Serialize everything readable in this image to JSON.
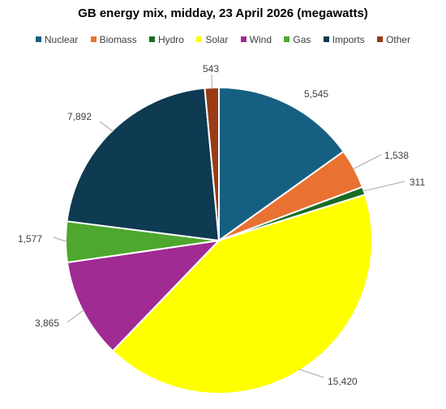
{
  "chart_data": {
    "type": "pie",
    "title": "GB energy mix, midday, 23 April 2026 (megawatts)",
    "legend_position": "top",
    "start_angle_deg": 0,
    "direction": "clockwise",
    "slices": [
      {
        "name": "Nuclear",
        "value": 5545,
        "label": "5,545",
        "color": "#156082"
      },
      {
        "name": "Biomass",
        "value": 1538,
        "label": "1,538",
        "color": "#E97132"
      },
      {
        "name": "Hydro",
        "value": 311,
        "label": "311",
        "color": "#196B24"
      },
      {
        "name": "Solar",
        "value": 15420,
        "label": "15,420",
        "color": "#FFFF00"
      },
      {
        "name": "Wind",
        "value": 3865,
        "label": "3,865",
        "color": "#A02B93"
      },
      {
        "name": "Gas",
        "value": 1577,
        "label": "1,577",
        "color": "#4EA72E"
      },
      {
        "name": "Imports",
        "value": 7892,
        "label": "7,892",
        "color": "#0E3A52"
      },
      {
        "name": "Other",
        "value": 543,
        "label": "543",
        "color": "#9A3B16"
      }
    ]
  }
}
